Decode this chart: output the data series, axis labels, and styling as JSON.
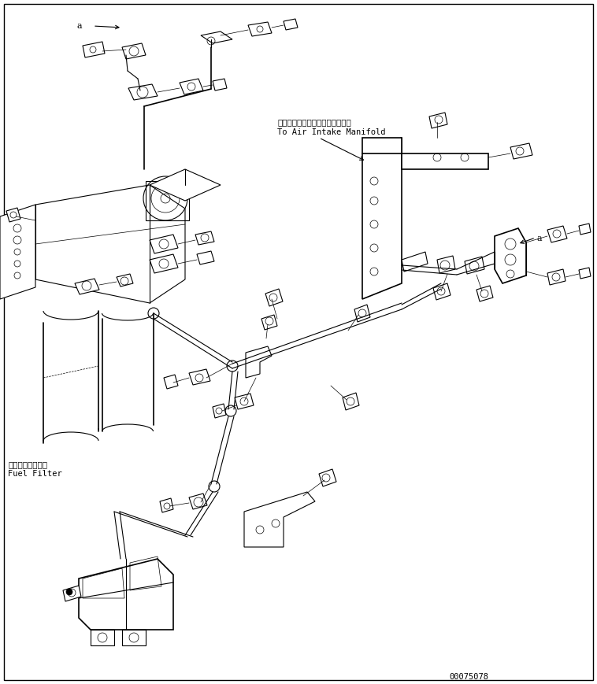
{
  "bg_color": "#ffffff",
  "line_color": "#000000",
  "fig_width": 7.58,
  "fig_height": 8.69,
  "dpi": 100,
  "part_number": "00075078",
  "label_fuel_filter_jp": "フェエルフィルタ",
  "label_fuel_filter_en": "Fuel Filter",
  "label_air_intake_jp": "エアーインテークマニホールドヘ",
  "label_air_intake_en": "To Air Intake Manifold",
  "label_a1": "a",
  "label_a2": "a"
}
